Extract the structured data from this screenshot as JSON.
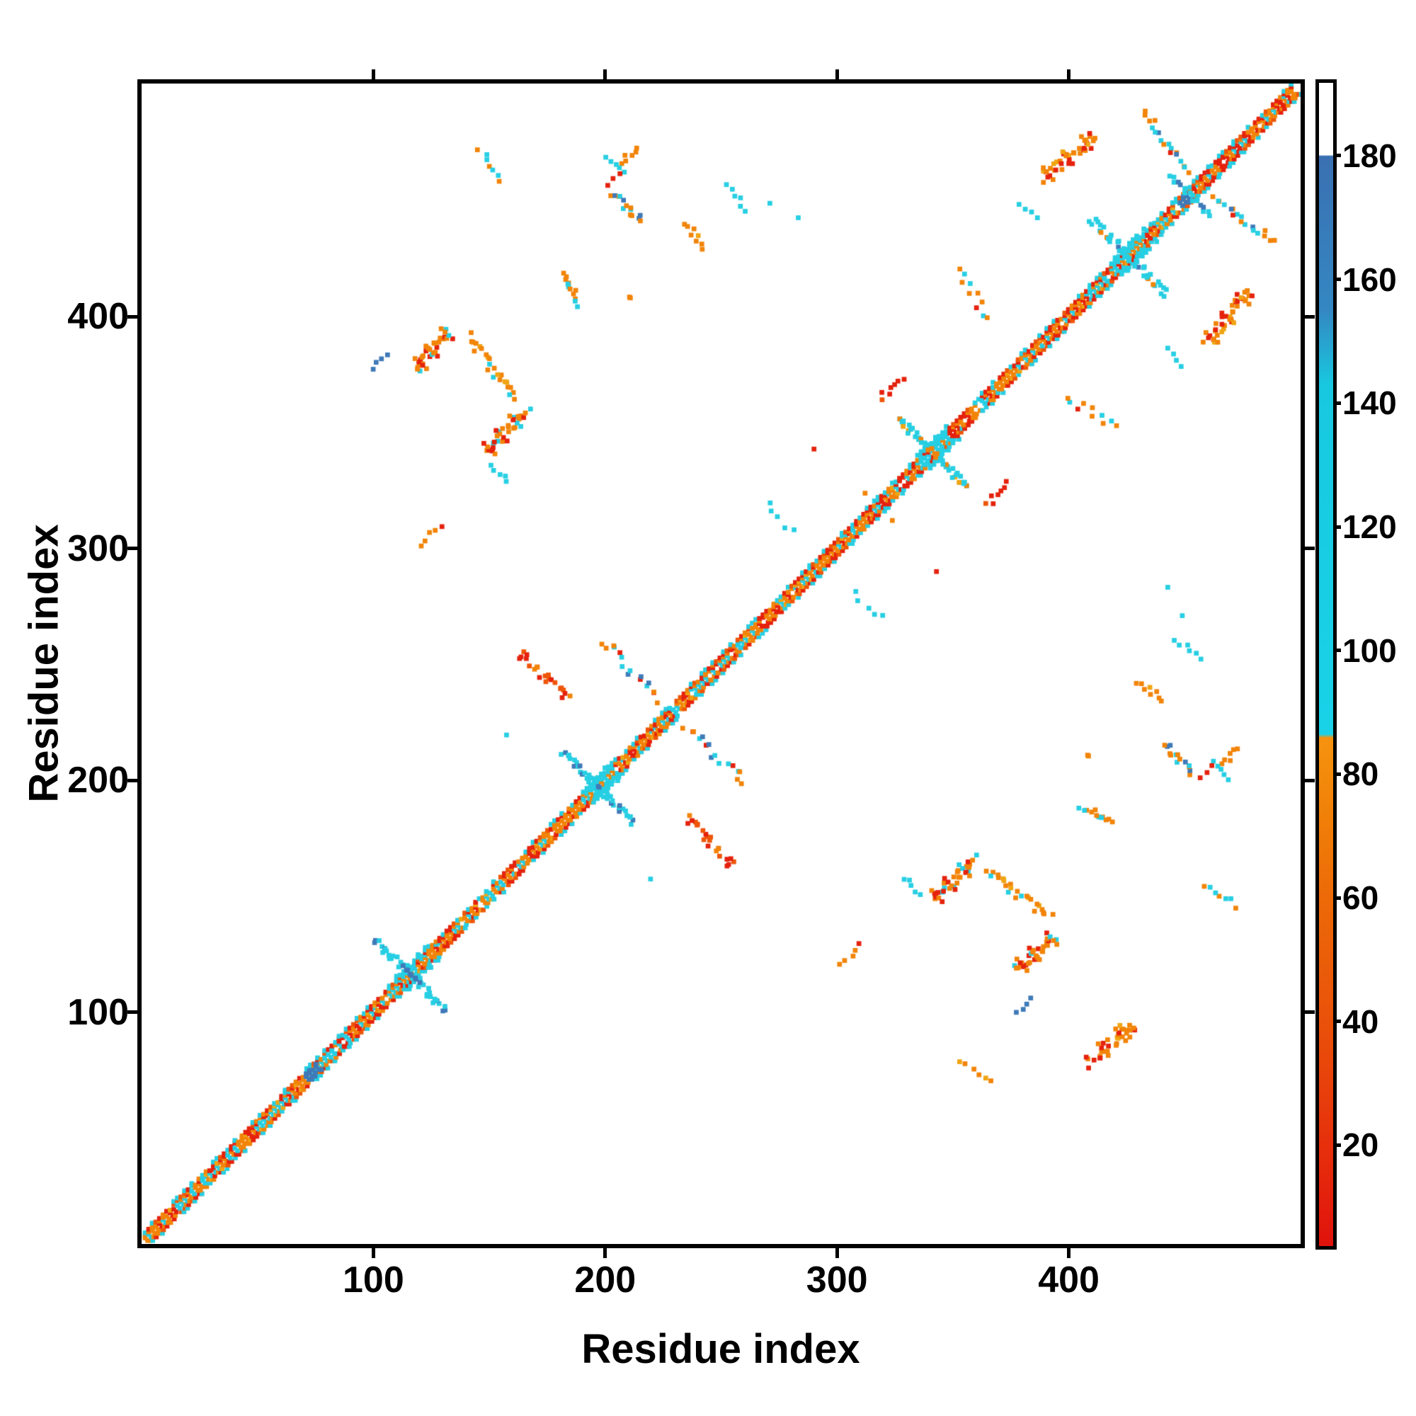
{
  "chart_data": {
    "type": "heatmap",
    "subtype": "protein-contact-map",
    "title": "",
    "xlabel": "Residue index",
    "ylabel": "Residue index",
    "xlim": [
      0,
      500
    ],
    "ylim": [
      0,
      500
    ],
    "xticks": [
      100,
      200,
      300,
      400
    ],
    "yticks": [
      400,
      300,
      200,
      100
    ],
    "grid": false,
    "background": "#ffffff",
    "axis_color": "#000000",
    "colors": {
      "red": "#e5220d",
      "orangered": "#ee5609",
      "orange": "#f28408",
      "amber": "#f0a513",
      "cyan": "#27cfe3",
      "steelblue": "#3f7ab8",
      "white": "#ffffff"
    },
    "colorbar": {
      "ticks": [
        180,
        160,
        140,
        120,
        100,
        80,
        60,
        40,
        20
      ],
      "vmin": 3.8,
      "vmax": 191.9,
      "stops": [
        [
          0.0,
          "#ffffff"
        ],
        [
          0.062,
          "#ffffff"
        ],
        [
          0.063,
          "#3a70b2"
        ],
        [
          0.195,
          "#3487c2"
        ],
        [
          0.26,
          "#18c8e0"
        ],
        [
          0.56,
          "#19d2e8"
        ],
        [
          0.563,
          "#f6930f"
        ],
        [
          0.63,
          "#f08008"
        ],
        [
          0.7,
          "#ec6a08"
        ],
        [
          0.813,
          "#e9500a"
        ],
        [
          0.938,
          "#e5280c"
        ],
        [
          1.0,
          "#df120c"
        ]
      ]
    },
    "diagonal": {
      "start": 1.5,
      "end": 497.5,
      "step": 1.55,
      "bands": [
        {
          "offset": 1.1,
          "mix": [
            [
              "cyan",
              35
            ],
            [
              "orange",
              40
            ],
            [
              "red",
              15
            ],
            [
              "skip",
              10
            ]
          ]
        },
        {
          "offset": 2.2,
          "mix": [
            [
              "orange",
              50
            ],
            [
              "red",
              25
            ],
            [
              "amber",
              10
            ],
            [
              "cyan",
              5
            ],
            [
              "skip",
              10
            ]
          ]
        },
        {
          "offset": 3.3,
          "mix": [
            [
              "red",
              35
            ],
            [
              "orangered",
              20
            ],
            [
              "orange",
              15
            ],
            [
              "cyan",
              15
            ],
            [
              "skip",
              15
            ]
          ]
        },
        {
          "offset": 4.4,
          "mix": [
            [
              "cyan",
              30
            ],
            [
              "skip",
              70
            ]
          ]
        }
      ],
      "hairpin_crossings": [
        116,
        197,
        341,
        426
      ],
      "blue_spots": [
        [
          71,
          76
        ],
        [
          448,
          452
        ]
      ]
    },
    "clusters": [
      {
        "i": [
          100,
          106
        ],
        "j": [
          378,
          384
        ],
        "o": "par",
        "c": {
          "steelblue": 1
        },
        "n": 4,
        "s": 1.0
      },
      {
        "i": [
          118,
          132
        ],
        "j": [
          377,
          393
        ],
        "o": "par",
        "c": {
          "orange": 6,
          "red": 3,
          "cyan": 1
        },
        "n": 22,
        "s": 2.4,
        "hash": 1
      },
      {
        "i": [
          142,
          160
        ],
        "j": [
          365,
          391
        ],
        "o": "anti",
        "c": {
          "orange": 5,
          "amber": 2,
          "cyan": 4
        },
        "n": 24,
        "s": 2.2
      },
      {
        "i": [
          149,
          166
        ],
        "j": [
          342,
          360
        ],
        "o": "par",
        "c": {
          "orange": 5,
          "red": 4,
          "cyan": 1
        },
        "n": 24,
        "s": 2.2,
        "hash": 1
      },
      {
        "i": [
          151,
          158
        ],
        "j": [
          329,
          336
        ],
        "o": "anti",
        "c": {
          "cyan": 1
        },
        "n": 5,
        "s": 1.2
      },
      {
        "i": [
          181,
          189
        ],
        "j": [
          406,
          418
        ],
        "o": "anti",
        "c": {
          "cyan": 7,
          "orange": 3
        },
        "n": 12,
        "s": 1.8
      },
      {
        "i": [
          207,
          213
        ],
        "j": [
          466,
          473
        ],
        "o": "par",
        "c": {
          "orange": 1
        },
        "n": 6,
        "s": 1.5
      },
      {
        "i": [
          201,
          208
        ],
        "j": [
          462,
          469
        ],
        "o": "anti",
        "c": {
          "cyan": 1
        },
        "n": 5,
        "s": 1.2
      },
      {
        "i": [
          201,
          206
        ],
        "j": [
          457,
          462
        ],
        "o": "par",
        "c": {
          "red": 1
        },
        "n": 3,
        "s": 0.8
      },
      {
        "i": [
          203,
          216
        ],
        "j": [
          441,
          453
        ],
        "o": "anti",
        "c": {
          "cyan": 4,
          "steelblue": 3,
          "orange": 3
        },
        "n": 14,
        "s": 1.5
      },
      {
        "i": [
          209,
          212
        ],
        "j": [
          407,
          410
        ],
        "o": "spot",
        "c": {
          "orange": 1
        },
        "n": 2,
        "s": 0.8
      },
      {
        "i": [
          235,
          242
        ],
        "j": [
          430,
          441
        ],
        "o": "anti",
        "c": {
          "orange": 4,
          "amber": 1
        },
        "n": 8,
        "s": 1.5
      },
      {
        "i": [
          252,
          261
        ],
        "j": [
          447,
          456
        ],
        "o": "anti",
        "c": {
          "cyan": 1
        },
        "n": 6,
        "s": 1.5
      },
      {
        "i": [
          163,
          184
        ],
        "j": [
          235,
          255
        ],
        "o": "anti",
        "c": {
          "red": 5,
          "orangered": 3,
          "orange": 3
        },
        "n": 22,
        "s": 1.8
      },
      {
        "i": [
          199,
          223
        ],
        "j": [
          234,
          261
        ],
        "o": "anti",
        "c": {
          "cyan": 5,
          "orange": 3,
          "red": 2,
          "steelblue": 1
        },
        "n": 16,
        "s": 2.2
      },
      {
        "i": [
          182,
          196
        ],
        "j": [
          198,
          212
        ],
        "o": "anti",
        "c": {
          "cyan": 9,
          "steelblue": 1
        },
        "n": 20,
        "s": 1.5
      },
      {
        "i": [
          156,
          159
        ],
        "j": [
          218,
          221
        ],
        "o": "spot",
        "c": {
          "cyan": 1
        },
        "n": 1,
        "s": 0.5
      },
      {
        "i": [
          319,
          329
        ],
        "j": [
          365,
          372
        ],
        "o": "par",
        "c": {
          "red": 6,
          "orangered": 1
        },
        "n": 7,
        "s": 1.8
      },
      {
        "i": [
          289,
          291
        ],
        "j": [
          342,
          344
        ],
        "o": "spot",
        "c": {
          "red": 1
        },
        "n": 1,
        "s": 0.5
      },
      {
        "i": [
          311,
          313
        ],
        "j": [
          323,
          325
        ],
        "o": "spot",
        "c": {
          "orange": 1
        },
        "n": 1,
        "s": 0.5
      },
      {
        "i": [
          326,
          328
        ],
        "j": [
          355,
          357
        ],
        "o": "spot",
        "c": {
          "cyan": 1
        },
        "n": 1,
        "s": 0.5
      },
      {
        "i": [
          327,
          340
        ],
        "j": [
          342,
          356
        ],
        "o": "anti",
        "c": {
          "cyan": 7,
          "orange": 2,
          "amber": 1
        },
        "n": 22,
        "s": 1.6
      },
      {
        "i": [
          101,
          115
        ],
        "j": [
          117,
          131
        ],
        "o": "anti",
        "c": {
          "cyan": 8,
          "steelblue": 2
        },
        "n": 20,
        "s": 1.6
      },
      {
        "i": [
          410,
          425
        ],
        "j": [
          427,
          442
        ],
        "o": "anti",
        "c": {
          "cyan": 8,
          "orange": 1,
          "steelblue": 1
        },
        "n": 20,
        "s": 1.6
      },
      {
        "i": [
          389,
          411
        ],
        "j": [
          460,
          478
        ],
        "o": "par",
        "c": {
          "orange": 5,
          "red": 4,
          "amber": 2
        },
        "n": 30,
        "s": 2.6,
        "hash": 1
      },
      {
        "i": [
          433,
          450
        ],
        "j": [
          462,
          488
        ],
        "o": "anti",
        "c": {
          "cyan": 5,
          "orange": 3,
          "steelblue": 1,
          "red": 1
        },
        "n": 18,
        "s": 2.0
      },
      {
        "i": [
          379,
          386
        ],
        "j": [
          443,
          449
        ],
        "o": "anti",
        "c": {
          "cyan": 1
        },
        "n": 4,
        "s": 1.0
      },
      {
        "i": [
          353,
          365
        ],
        "j": [
          400,
          419
        ],
        "o": "anti",
        "c": {
          "orange": 5,
          "cyan": 3,
          "red": 2
        },
        "n": 10,
        "s": 2.2
      },
      {
        "i": [
          146,
          154
        ],
        "j": [
          459,
          472
        ],
        "o": "anti",
        "c": {
          "cyan": 6,
          "orange": 4
        },
        "n": 7,
        "s": 1.5
      },
      {
        "i": [
          120,
          129
        ],
        "j": [
          302,
          310
        ],
        "o": "par",
        "c": {
          "orange": 4,
          "red": 1
        },
        "n": 5,
        "s": 1.2
      },
      {
        "i": [
          270,
          281
        ],
        "j": [
          307,
          320
        ],
        "o": "anti",
        "c": {
          "cyan": 1
        },
        "n": 5,
        "s": 1.5
      },
      {
        "i": [
          270,
          272
        ],
        "j": [
          448,
          450
        ],
        "o": "spot",
        "c": {
          "cyan": 1
        },
        "n": 1,
        "s": 0.5
      },
      {
        "i": [
          282,
          284
        ],
        "j": [
          442,
          444
        ],
        "o": "spot",
        "c": {
          "cyan": 1
        },
        "n": 1,
        "s": 0.5
      },
      {
        "i": [
          444,
          452
        ],
        "j": [
          453,
          461
        ],
        "o": "anti",
        "c": {
          "cyan": 6,
          "steelblue": 4
        },
        "n": 8,
        "s": 1.2
      },
      {
        "i": [
          408,
          428
        ],
        "j": [
          78,
          95
        ],
        "o": "par",
        "c": {
          "orange": 5,
          "red": 4,
          "amber": 1
        },
        "n": 24,
        "s": 2.4,
        "hash": 1,
        "mirror": false
      },
      {
        "i": [
          353,
          366
        ],
        "j": [
          69,
          79
        ],
        "o": "anti",
        "c": {
          "orange": 7,
          "amber": 3
        },
        "n": 6,
        "s": 1.5,
        "mirror": false
      }
    ]
  }
}
